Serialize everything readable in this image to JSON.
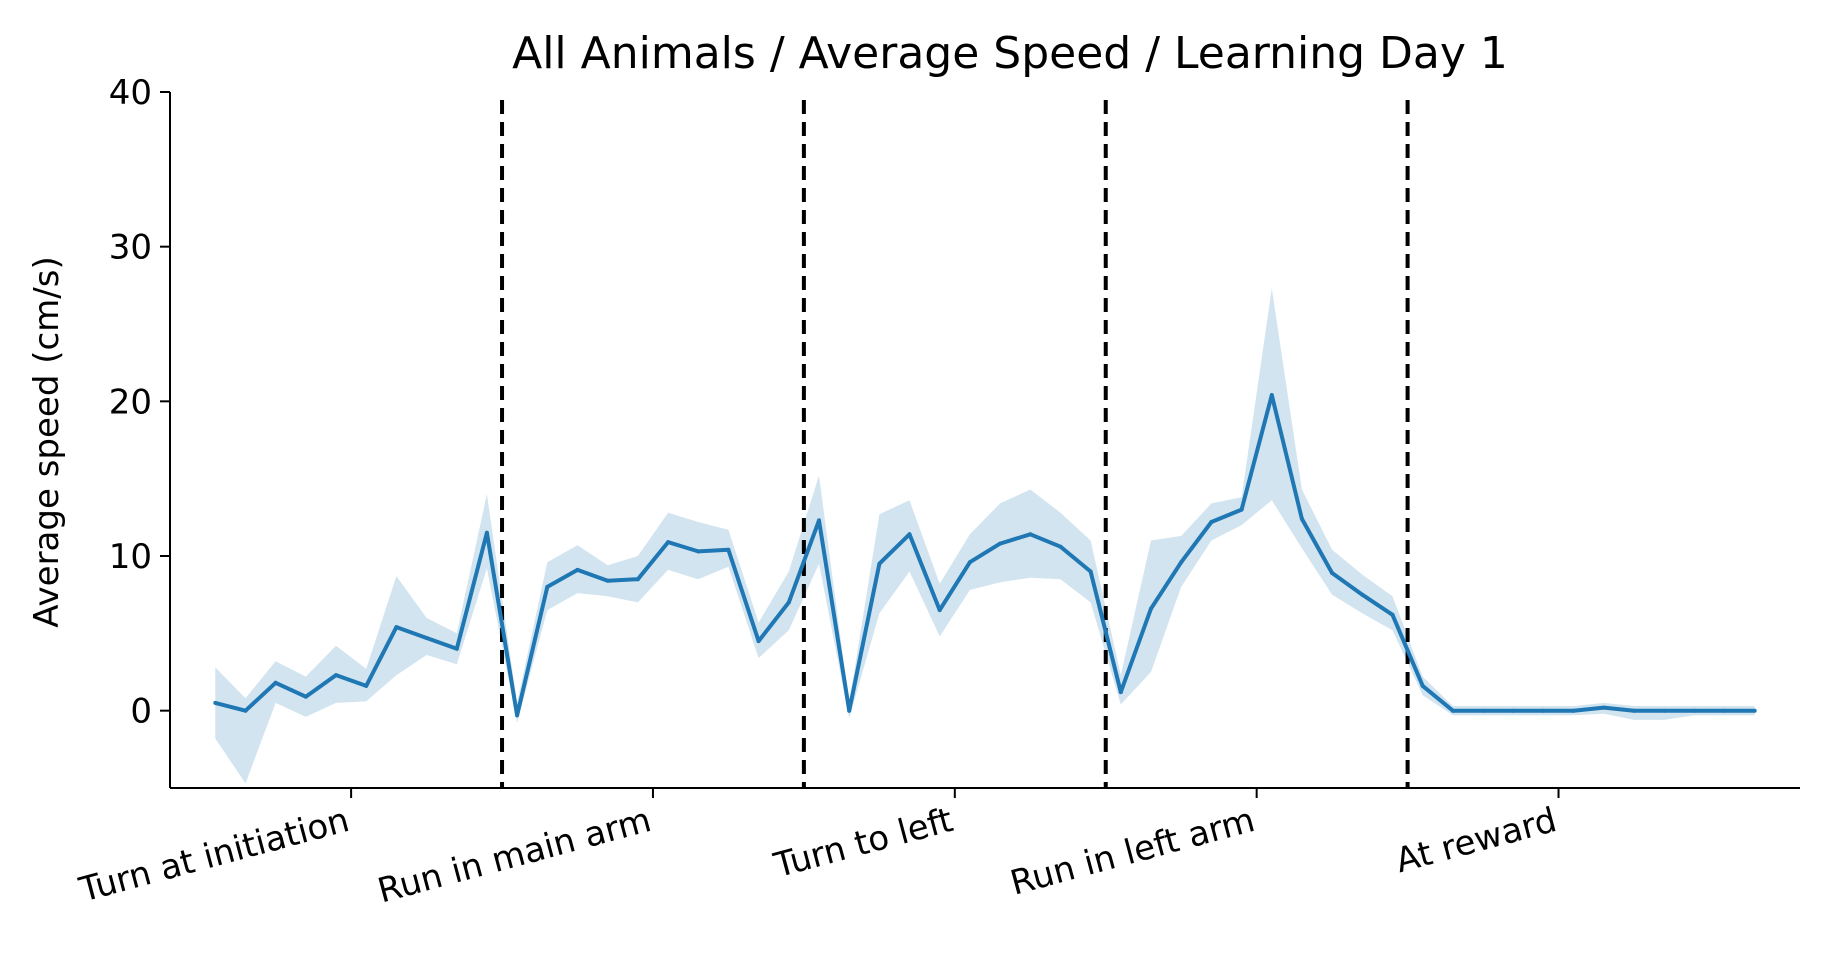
{
  "chart_data": {
    "type": "line",
    "title": "All Animals / Average Speed / Learning Day 1",
    "xlabel": "",
    "ylabel": "Average speed (cm/s)",
    "ylim": [
      -5,
      40
    ],
    "yticks": [
      0,
      10,
      20,
      30,
      40
    ],
    "xlim": [
      -1.5,
      52.5
    ],
    "xticks": [
      4.5,
      14.5,
      24.5,
      34.5,
      44.5
    ],
    "xtick_labels": [
      "Turn at initiation",
      "Run in main arm",
      "Turn to left",
      "Run in left arm",
      "At reward"
    ],
    "vlines": [
      9.5,
      19.5,
      29.5,
      39.5
    ],
    "grid": false,
    "colors": {
      "line": "#1f77b4",
      "band": "#1f77b4",
      "vline": "#000000"
    },
    "series": [
      {
        "x": [
          0,
          1,
          2,
          3,
          4,
          5,
          6,
          7,
          8,
          9,
          10,
          11,
          12,
          13,
          14,
          15,
          16,
          17,
          18,
          19,
          20,
          21,
          22,
          23,
          24,
          25,
          26,
          27,
          28,
          29,
          30,
          31,
          32,
          33,
          34,
          35,
          36,
          37,
          38,
          39,
          40,
          41,
          42,
          43,
          44,
          45,
          46,
          47,
          48,
          49,
          50,
          51
        ],
        "values": [
          0.5,
          0.0,
          1.8,
          0.9,
          2.3,
          1.6,
          5.4,
          4.7,
          4.0,
          11.5,
          -0.3,
          8.0,
          9.1,
          8.4,
          8.5,
          10.9,
          10.3,
          10.4,
          4.5,
          7.0,
          12.3,
          0.0,
          9.5,
          11.4,
          6.5,
          9.6,
          10.8,
          11.4,
          10.6,
          9.0,
          1.2,
          6.6,
          9.6,
          12.2,
          13.0,
          20.4,
          12.4,
          8.9,
          7.5,
          6.2,
          1.6,
          0.0,
          0.0,
          0.0,
          0.0,
          0.0,
          0.2,
          0.0,
          0.0,
          0.0,
          0.0,
          0.0
        ],
        "lower": [
          -1.8,
          -4.7,
          0.5,
          -0.4,
          0.5,
          0.6,
          2.3,
          3.6,
          3.0,
          9.2,
          -0.8,
          6.5,
          7.6,
          7.4,
          7.0,
          9.1,
          8.5,
          9.3,
          3.4,
          5.2,
          9.5,
          -0.5,
          6.3,
          9.0,
          4.8,
          7.8,
          8.3,
          8.6,
          8.5,
          7.0,
          0.4,
          2.5,
          8.0,
          11.0,
          12.0,
          13.6,
          10.5,
          7.5,
          6.3,
          5.2,
          1.0,
          -0.3,
          -0.3,
          -0.3,
          -0.3,
          -0.3,
          -0.2,
          -0.6,
          -0.6,
          -0.3,
          -0.3,
          -0.3
        ],
        "upper": [
          2.8,
          0.8,
          3.2,
          2.2,
          4.2,
          2.7,
          8.7,
          6.0,
          5.0,
          14.0,
          0.5,
          9.6,
          10.7,
          9.4,
          10.0,
          12.8,
          12.2,
          11.7,
          5.7,
          9.0,
          15.2,
          0.5,
          12.7,
          13.6,
          8.2,
          11.4,
          13.4,
          14.3,
          12.8,
          11.0,
          2.3,
          11.0,
          11.3,
          13.4,
          13.8,
          27.3,
          14.3,
          10.4,
          8.8,
          7.4,
          2.2,
          0.3,
          0.3,
          0.3,
          0.3,
          0.3,
          0.5,
          0.3,
          0.3,
          0.3,
          0.3,
          0.3
        ]
      }
    ]
  }
}
